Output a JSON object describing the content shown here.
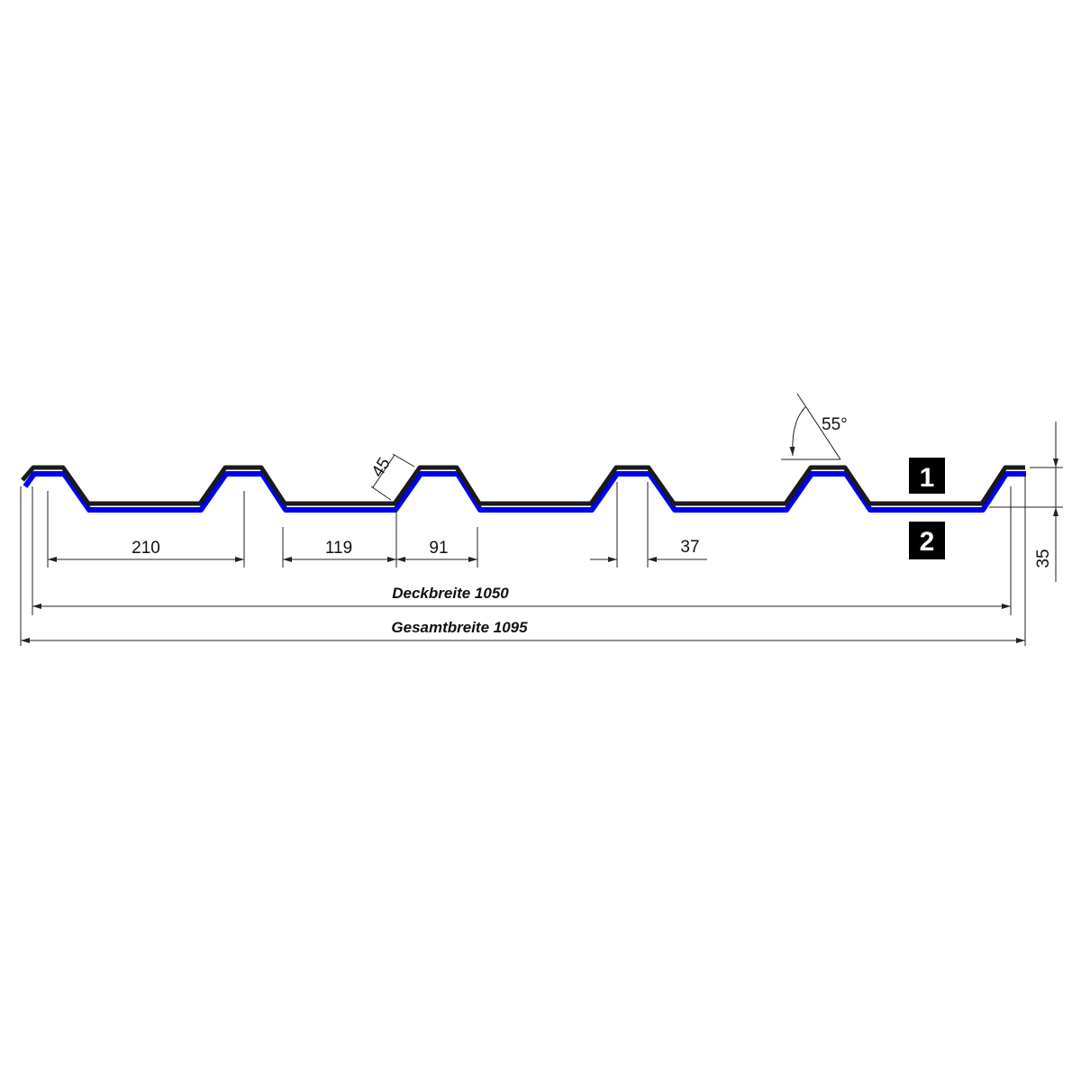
{
  "dimensions": {
    "valley_width": "210",
    "valley_bottom": "119",
    "rib_base": "91",
    "rib_top": "37",
    "slope_length": "45",
    "angle": "55°",
    "height": "35",
    "cover_width": "Deckbreite 1050",
    "total_width": "Gesamtbreite 1095"
  },
  "labels": {
    "side_1": "1",
    "side_2": "2"
  },
  "colors": {
    "profile_top": "#1a1a1a",
    "profile_bottom": "#0000ee"
  }
}
